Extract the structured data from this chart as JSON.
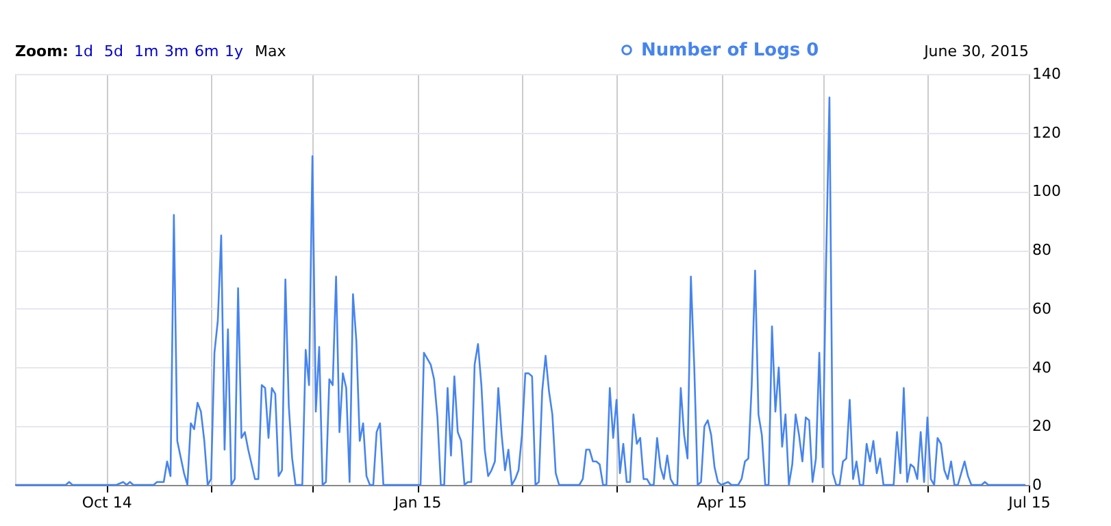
{
  "chart_data": {
    "type": "line",
    "annotations": [
      "Zoom:",
      "1d",
      "5d",
      "1m",
      "3m",
      "6m",
      "1y",
      "Max",
      "June 30, 2015"
    ],
    "x": [
      "2014-09-04",
      "2014-09-19",
      "2014-09-20",
      "2014-09-21",
      "2014-10-04",
      "2014-10-06",
      "2014-10-07",
      "2014-10-08",
      "2014-10-09",
      "2014-10-15",
      "2014-10-16",
      "2014-10-18",
      "2014-10-19",
      "2014-10-20",
      "2014-10-21",
      "2014-10-22",
      "2014-10-24",
      "2014-10-25",
      "2014-10-26",
      "2014-10-27",
      "2014-10-28",
      "2014-10-29",
      "2014-10-30",
      "2014-10-31",
      "2014-11-01",
      "2014-11-02",
      "2014-11-03",
      "2014-11-04",
      "2014-11-05",
      "2014-11-06",
      "2014-11-07",
      "2014-11-08",
      "2014-11-09",
      "2014-11-10",
      "2014-11-11",
      "2014-11-12",
      "2014-11-14",
      "2014-11-15",
      "2014-11-16",
      "2014-11-17",
      "2014-11-18",
      "2014-11-19",
      "2014-11-20",
      "2014-11-21",
      "2014-11-22",
      "2014-11-23",
      "2014-11-24",
      "2014-11-25",
      "2014-11-26",
      "2014-11-28",
      "2014-11-29",
      "2014-11-30",
      "2014-12-01",
      "2014-12-02",
      "2014-12-03",
      "2014-12-04",
      "2014-12-05",
      "2014-12-06",
      "2014-12-07",
      "2014-12-08",
      "2014-12-09",
      "2014-12-10",
      "2014-12-11",
      "2014-12-12",
      "2014-12-13",
      "2014-12-14",
      "2014-12-15",
      "2014-12-16",
      "2014-12-17",
      "2014-12-18",
      "2014-12-19",
      "2014-12-20",
      "2014-12-21",
      "2014-12-22",
      "2015-01-02",
      "2015-01-03",
      "2015-01-05",
      "2015-01-06",
      "2015-01-07",
      "2015-01-08",
      "2015-01-09",
      "2015-01-10",
      "2015-01-11",
      "2015-01-12",
      "2015-01-13",
      "2015-01-14",
      "2015-01-15",
      "2015-01-16",
      "2015-01-17",
      "2015-01-18",
      "2015-01-19",
      "2015-01-20",
      "2015-01-21",
      "2015-01-22",
      "2015-01-23",
      "2015-01-24",
      "2015-01-25",
      "2015-01-26",
      "2015-01-27",
      "2015-01-28",
      "2015-01-29",
      "2015-01-30",
      "2015-01-31",
      "2015-02-01",
      "2015-02-02",
      "2015-02-03",
      "2015-02-04",
      "2015-02-05",
      "2015-02-06",
      "2015-02-07",
      "2015-02-08",
      "2015-02-09",
      "2015-02-10",
      "2015-02-11",
      "2015-02-12",
      "2015-02-18",
      "2015-02-19",
      "2015-02-20",
      "2015-02-21",
      "2015-02-22",
      "2015-02-23",
      "2015-02-24",
      "2015-02-25",
      "2015-02-26",
      "2015-02-27",
      "2015-02-28",
      "2015-03-01",
      "2015-03-02",
      "2015-03-03",
      "2015-03-04",
      "2015-03-05",
      "2015-03-06",
      "2015-03-07",
      "2015-03-08",
      "2015-03-09",
      "2015-03-10",
      "2015-03-11",
      "2015-03-12",
      "2015-03-13",
      "2015-03-14",
      "2015-03-15",
      "2015-03-16",
      "2015-03-17",
      "2015-03-18",
      "2015-03-19",
      "2015-03-20",
      "2015-03-21",
      "2015-03-22",
      "2015-03-23",
      "2015-03-24",
      "2015-03-25",
      "2015-03-26",
      "2015-03-27",
      "2015-03-28",
      "2015-03-29",
      "2015-03-30",
      "2015-03-31",
      "2015-04-01",
      "2015-04-03",
      "2015-04-04",
      "2015-04-06",
      "2015-04-07",
      "2015-04-08",
      "2015-04-09",
      "2015-04-10",
      "2015-04-11",
      "2015-04-12",
      "2015-04-13",
      "2015-04-14",
      "2015-04-15",
      "2015-04-16",
      "2015-04-17",
      "2015-04-18",
      "2015-04-19",
      "2015-04-20",
      "2015-04-21",
      "2015-04-22",
      "2015-04-23",
      "2015-04-24",
      "2015-04-25",
      "2015-04-26",
      "2015-04-27",
      "2015-04-28",
      "2015-04-29",
      "2015-04-30",
      "2015-05-01",
      "2015-05-02",
      "2015-05-03",
      "2015-05-04",
      "2015-05-05",
      "2015-05-06",
      "2015-05-07",
      "2015-05-08",
      "2015-05-09",
      "2015-05-10",
      "2015-05-11",
      "2015-05-12",
      "2015-05-13",
      "2015-05-14",
      "2015-05-15",
      "2015-05-16",
      "2015-05-17",
      "2015-05-18",
      "2015-05-19",
      "2015-05-20",
      "2015-05-22",
      "2015-05-23",
      "2015-05-24",
      "2015-05-25",
      "2015-05-26",
      "2015-05-27",
      "2015-05-28",
      "2015-05-29",
      "2015-05-30",
      "2015-05-31",
      "2015-06-01",
      "2015-06-02",
      "2015-06-03",
      "2015-06-04",
      "2015-06-05",
      "2015-06-06",
      "2015-06-07",
      "2015-06-08",
      "2015-06-09",
      "2015-06-10",
      "2015-06-11",
      "2015-06-12",
      "2015-06-13",
      "2015-06-14",
      "2015-06-17",
      "2015-06-18",
      "2015-06-19",
      "2015-06-30"
    ],
    "series": [
      {
        "name": "Number of Logs 0",
        "color": "#4684ee",
        "values": [
          0,
          0,
          1,
          0,
          0,
          1,
          0,
          1,
          0,
          0,
          1,
          1,
          8,
          3,
          92,
          15,
          4,
          0,
          21,
          19,
          28,
          25,
          15,
          0,
          2,
          45,
          56,
          85,
          12,
          53,
          0,
          2,
          67,
          16,
          18,
          12,
          2,
          2,
          34,
          33,
          16,
          33,
          31,
          3,
          5,
          70,
          27,
          9,
          0,
          0,
          46,
          34,
          112,
          25,
          47,
          0,
          1,
          36,
          34,
          71,
          18,
          38,
          33,
          1,
          65,
          49,
          15,
          21,
          3,
          0,
          0,
          18,
          21,
          0,
          0,
          45,
          41,
          36,
          23,
          0,
          0,
          33,
          10,
          37,
          18,
          15,
          0,
          1,
          1,
          41,
          48,
          34,
          12,
          3,
          5,
          8,
          33,
          17,
          5,
          12,
          0,
          2,
          5,
          17,
          38,
          38,
          37,
          0,
          1,
          32,
          44,
          32,
          24,
          4,
          0,
          0,
          2,
          12,
          12,
          8,
          8,
          7,
          0,
          0,
          33,
          16,
          29,
          4,
          14,
          1,
          1,
          24,
          14,
          16,
          2,
          2,
          0,
          0,
          16,
          6,
          2,
          10,
          2,
          0,
          0,
          33,
          17,
          9,
          71,
          40,
          0,
          1,
          20,
          22,
          17,
          6,
          1,
          0,
          1,
          0,
          0,
          2,
          8,
          9,
          34,
          73,
          24,
          17,
          0,
          0,
          54,
          25,
          40,
          13,
          24,
          0,
          7,
          24,
          17,
          8,
          23,
          22,
          1,
          9,
          45,
          6,
          75,
          132,
          4,
          0,
          0,
          8,
          9,
          29,
          2,
          8,
          0,
          0,
          14,
          8,
          15,
          4,
          9,
          0,
          0,
          0,
          18,
          4,
          33,
          1,
          7,
          6,
          2,
          18,
          1,
          23,
          2,
          0,
          16,
          14,
          5,
          2,
          8,
          0,
          0,
          4,
          8,
          3,
          0,
          0,
          1,
          0,
          0
        ]
      }
    ],
    "xlim": [
      "2014-09-04",
      "2015-07-01"
    ],
    "xticks": [
      {
        "value": "2014-10-01",
        "label": "Oct 14"
      },
      {
        "value": "2014-11-01",
        "label": null
      },
      {
        "value": "2014-12-01",
        "label": null
      },
      {
        "value": "2015-01-01",
        "label": "Jan 15"
      },
      {
        "value": "2015-02-01",
        "label": null
      },
      {
        "value": "2015-03-01",
        "label": null
      },
      {
        "value": "2015-04-01",
        "label": "Apr 15"
      },
      {
        "value": "2015-05-01",
        "label": null
      },
      {
        "value": "2015-06-01",
        "label": null
      },
      {
        "value": "2015-07-01",
        "label": "Jul 15"
      }
    ],
    "ylim": [
      0,
      140
    ],
    "yticks": [
      0,
      20,
      40,
      60,
      80,
      100,
      120,
      140
    ],
    "grid": true,
    "legend": "top right",
    "line_style": "solid"
  }
}
